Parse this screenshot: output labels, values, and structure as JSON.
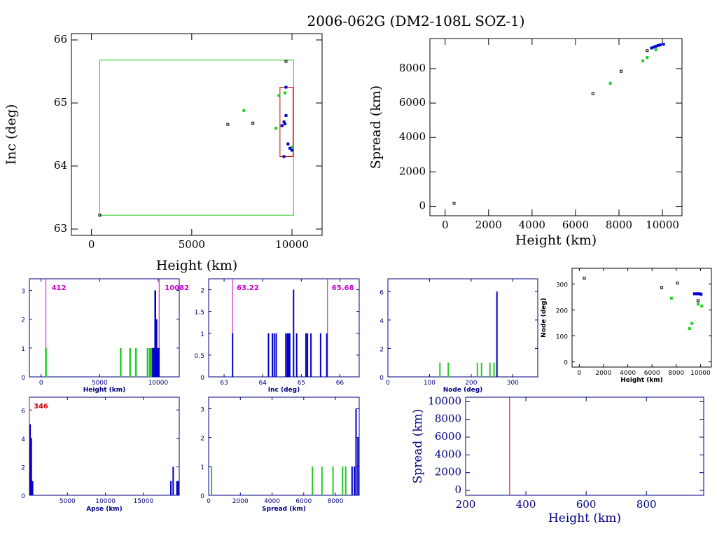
{
  "title": "2006-062G (DM2-108L SOZ-1)",
  "colors": {
    "black": "#000000",
    "green": "#22cc22",
    "blue": "#0000cc",
    "red": "#cc0000",
    "magenta": "#cc00cc",
    "navy": "#000080"
  },
  "chart_data": [
    {
      "id": "inc-height",
      "type": "scatter",
      "xlabel": "Height (km)",
      "ylabel": "Inc (deg)",
      "xlim": [
        -1000,
        11500
      ],
      "ylim": [
        62.9,
        66.1
      ],
      "xticks": [
        0,
        5000,
        10000
      ],
      "yticks": [
        63,
        64,
        65,
        66
      ],
      "boxes": [
        {
          "x": [
            412,
            10082
          ],
          "y": [
            63.22,
            65.68
          ],
          "color": "green"
        },
        {
          "x": [
            9400,
            10050
          ],
          "y": [
            64.15,
            65.25
          ],
          "color": "red"
        }
      ],
      "points": [
        {
          "x": 6800,
          "y": 64.66,
          "c": "black"
        },
        {
          "x": 8050,
          "y": 64.68,
          "c": "black"
        },
        {
          "x": 9700,
          "y": 65.66,
          "c": "black"
        },
        {
          "x": 412,
          "y": 63.22,
          "c": "black"
        },
        {
          "x": 7600,
          "y": 64.88,
          "c": "green"
        },
        {
          "x": 9200,
          "y": 64.6,
          "c": "green"
        },
        {
          "x": 9350,
          "y": 65.12,
          "c": "green"
        },
        {
          "x": 9650,
          "y": 65.16,
          "c": "green"
        },
        {
          "x": 10000,
          "y": 64.3,
          "c": "green"
        },
        {
          "x": 9500,
          "y": 64.64,
          "c": "blue"
        },
        {
          "x": 9600,
          "y": 64.7,
          "c": "blue"
        },
        {
          "x": 9650,
          "y": 64.67,
          "c": "blue"
        },
        {
          "x": 9700,
          "y": 64.8,
          "c": "blue"
        },
        {
          "x": 9800,
          "y": 64.35,
          "c": "blue"
        },
        {
          "x": 9900,
          "y": 64.28,
          "c": "blue"
        },
        {
          "x": 10000,
          "y": 64.25,
          "c": "blue"
        },
        {
          "x": 9600,
          "y": 64.15,
          "c": "blue"
        },
        {
          "x": 9700,
          "y": 65.25,
          "c": "blue"
        }
      ]
    },
    {
      "id": "spread-height",
      "type": "scatter",
      "xlabel": "Height (km)",
      "ylabel": "Spread (km)",
      "xlim": [
        -700,
        10900
      ],
      "ylim": [
        -550,
        9750
      ],
      "xticks": [
        0,
        2000,
        4000,
        6000,
        8000,
        10000
      ],
      "yticks": [
        0,
        2000,
        4000,
        6000,
        8000
      ],
      "points": [
        {
          "x": 412,
          "y": 180,
          "c": "black"
        },
        {
          "x": 6800,
          "y": 6550,
          "c": "black"
        },
        {
          "x": 8100,
          "y": 7850,
          "c": "black"
        },
        {
          "x": 9300,
          "y": 9050,
          "c": "black"
        },
        {
          "x": 7600,
          "y": 7150,
          "c": "green"
        },
        {
          "x": 9100,
          "y": 8450,
          "c": "green"
        },
        {
          "x": 9300,
          "y": 8650,
          "c": "green"
        },
        {
          "x": 9700,
          "y": 9100,
          "c": "green"
        },
        {
          "x": 9500,
          "y": 9200,
          "c": "blue"
        },
        {
          "x": 9600,
          "y": 9250,
          "c": "blue"
        },
        {
          "x": 9700,
          "y": 9300,
          "c": "blue"
        },
        {
          "x": 9800,
          "y": 9350,
          "c": "blue"
        },
        {
          "x": 9900,
          "y": 9380,
          "c": "blue"
        },
        {
          "x": 10050,
          "y": 9420,
          "c": "blue"
        }
      ]
    },
    {
      "id": "hist-height",
      "type": "bar",
      "xlabel": "Height (km)",
      "ylabel": "",
      "xlim": [
        -1000,
        11800
      ],
      "ylim": [
        0,
        3.4
      ],
      "xticks": [
        0,
        5000,
        10000
      ],
      "yticks": [
        0,
        1,
        2,
        3
      ],
      "vlines": [
        {
          "x": 412,
          "color": "magenta",
          "label": "412",
          "anchor": "right"
        },
        {
          "x": 10082,
          "color": "magenta",
          "label": "10082",
          "anchor": "right"
        }
      ],
      "bars": [
        {
          "x": 412,
          "h": 1,
          "c": "green"
        },
        {
          "x": 6800,
          "h": 1,
          "c": "green"
        },
        {
          "x": 7600,
          "h": 1,
          "c": "green"
        },
        {
          "x": 8100,
          "h": 1,
          "c": "green"
        },
        {
          "x": 9100,
          "h": 1,
          "c": "green"
        },
        {
          "x": 9300,
          "h": 1,
          "c": "green"
        },
        {
          "x": 9450,
          "h": 1,
          "c": "green"
        },
        {
          "x": 9550,
          "h": 1,
          "c": "blue"
        },
        {
          "x": 9650,
          "h": 1,
          "c": "blue"
        },
        {
          "x": 9750,
          "h": 3,
          "c": "blue"
        },
        {
          "x": 9850,
          "h": 2,
          "c": "blue"
        },
        {
          "x": 9950,
          "h": 1,
          "c": "blue"
        },
        {
          "x": 10050,
          "h": 1,
          "c": "blue"
        }
      ]
    },
    {
      "id": "hist-inc",
      "type": "bar",
      "xlabel": "Inc (deg)",
      "ylabel": "",
      "xlim": [
        62.6,
        66.5
      ],
      "ylim": [
        0,
        2.25
      ],
      "xticks": [
        63,
        64,
        65,
        66
      ],
      "yticks": [
        0,
        0.5,
        1,
        1.5,
        2
      ],
      "vlines": [
        {
          "x": 63.22,
          "color": "magenta",
          "label": "63.22",
          "anchor": "left"
        },
        {
          "x": 65.68,
          "color": "magenta",
          "label": "65.68",
          "anchor": "left"
        }
      ],
      "bars": [
        {
          "x": 63.22,
          "h": 1,
          "c": "blue"
        },
        {
          "x": 64.15,
          "h": 1,
          "c": "blue"
        },
        {
          "x": 64.25,
          "h": 1,
          "c": "blue"
        },
        {
          "x": 64.3,
          "h": 1,
          "c": "blue"
        },
        {
          "x": 64.35,
          "h": 1,
          "c": "blue"
        },
        {
          "x": 64.6,
          "h": 1,
          "c": "blue"
        },
        {
          "x": 64.64,
          "h": 1,
          "c": "blue"
        },
        {
          "x": 64.67,
          "h": 1,
          "c": "blue"
        },
        {
          "x": 64.7,
          "h": 1,
          "c": "blue"
        },
        {
          "x": 64.8,
          "h": 2,
          "c": "blue"
        },
        {
          "x": 64.88,
          "h": 1,
          "c": "blue"
        },
        {
          "x": 65.12,
          "h": 1,
          "c": "blue"
        },
        {
          "x": 65.16,
          "h": 1,
          "c": "blue"
        },
        {
          "x": 65.25,
          "h": 1,
          "c": "blue"
        },
        {
          "x": 65.5,
          "h": 1,
          "c": "blue"
        },
        {
          "x": 65.66,
          "h": 1,
          "c": "blue"
        }
      ]
    },
    {
      "id": "hist-node",
      "type": "bar",
      "xlabel": "Node (deg)",
      "ylabel": "",
      "xlim": [
        0,
        360
      ],
      "ylim": [
        0,
        6.9
      ],
      "xticks": [
        0,
        100,
        200,
        300
      ],
      "yticks": [
        0,
        2,
        4,
        6
      ],
      "bars": [
        {
          "x": 125,
          "h": 1,
          "c": "green"
        },
        {
          "x": 145,
          "h": 1,
          "c": "green"
        },
        {
          "x": 215,
          "h": 1,
          "c": "green"
        },
        {
          "x": 225,
          "h": 1,
          "c": "green"
        },
        {
          "x": 245,
          "h": 1,
          "c": "green"
        },
        {
          "x": 255,
          "h": 1,
          "c": "green"
        },
        {
          "x": 262,
          "h": 6,
          "c": "blue"
        }
      ]
    },
    {
      "id": "node-height",
      "type": "scatter",
      "xlabel": "Height (km)",
      "ylabel": "Node (deg)",
      "xlim": [
        -600,
        10900
      ],
      "ylim": [
        -20,
        360
      ],
      "xticks": [
        0,
        2000,
        4000,
        6000,
        8000,
        10000
      ],
      "yticks": [
        0,
        100,
        200,
        300
      ],
      "points": [
        {
          "x": 412,
          "y": 322,
          "c": "black"
        },
        {
          "x": 6800,
          "y": 286,
          "c": "black"
        },
        {
          "x": 8100,
          "y": 303,
          "c": "black"
        },
        {
          "x": 9800,
          "y": 235,
          "c": "black"
        },
        {
          "x": 7600,
          "y": 245,
          "c": "green"
        },
        {
          "x": 9100,
          "y": 128,
          "c": "green"
        },
        {
          "x": 9300,
          "y": 148,
          "c": "green"
        },
        {
          "x": 9800,
          "y": 222,
          "c": "green"
        },
        {
          "x": 10100,
          "y": 215,
          "c": "green"
        },
        {
          "x": 9500,
          "y": 262,
          "c": "blue"
        },
        {
          "x": 9650,
          "y": 262,
          "c": "blue"
        },
        {
          "x": 9750,
          "y": 262,
          "c": "blue"
        },
        {
          "x": 9850,
          "y": 262,
          "c": "blue"
        },
        {
          "x": 9950,
          "y": 262,
          "c": "blue"
        },
        {
          "x": 10050,
          "y": 260,
          "c": "blue"
        }
      ]
    },
    {
      "id": "hist-apse",
      "type": "bar",
      "xlabel": "Apse (km)",
      "ylabel": "",
      "xlim": [
        0,
        19700
      ],
      "ylim": [
        0,
        6.9
      ],
      "xticks": [
        5000,
        10000,
        15000
      ],
      "yticks": [
        0,
        2,
        4,
        6
      ],
      "vlines": [
        {
          "x": 0,
          "color": "red",
          "label": "346",
          "anchor": "left"
        }
      ],
      "bars": [
        {
          "x": 100,
          "h": 5,
          "c": "blue"
        },
        {
          "x": 250,
          "h": 4,
          "c": "blue"
        },
        {
          "x": 420,
          "h": 1,
          "c": "blue"
        },
        {
          "x": 18600,
          "h": 1,
          "c": "blue"
        },
        {
          "x": 18900,
          "h": 2,
          "c": "blue"
        },
        {
          "x": 19400,
          "h": 1,
          "c": "blue"
        },
        {
          "x": 19550,
          "h": 1,
          "c": "blue"
        }
      ]
    },
    {
      "id": "hist-spread",
      "type": "bar",
      "xlabel": "Spread (km)",
      "ylabel": "",
      "xlim": [
        0,
        9500
      ],
      "ylim": [
        0,
        3.4
      ],
      "xticks": [
        0,
        2000,
        4000,
        6000,
        8000
      ],
      "yticks": [
        0,
        1,
        2,
        3
      ],
      "bars": [
        {
          "x": 180,
          "h": 1,
          "c": "green"
        },
        {
          "x": 6550,
          "h": 1,
          "c": "green"
        },
        {
          "x": 7150,
          "h": 1,
          "c": "green"
        },
        {
          "x": 7850,
          "h": 1,
          "c": "green"
        },
        {
          "x": 8450,
          "h": 1,
          "c": "green"
        },
        {
          "x": 8650,
          "h": 1,
          "c": "green"
        },
        {
          "x": 9050,
          "h": 1,
          "c": "blue"
        },
        {
          "x": 9200,
          "h": 1,
          "c": "blue"
        },
        {
          "x": 9300,
          "h": 3,
          "c": "blue"
        },
        {
          "x": 9420,
          "h": 2,
          "c": "blue"
        }
      ]
    },
    {
      "id": "spread-height-low",
      "type": "line",
      "xlabel": "Height (km)",
      "ylabel": "Spread (km)",
      "xlim": [
        200,
        990
      ],
      "ylim": [
        -550,
        10500
      ],
      "xticks": [
        200,
        400,
        600,
        800
      ],
      "yticks": [
        0,
        2000,
        4000,
        6000,
        8000,
        10000
      ],
      "vlines": [
        {
          "x": 346,
          "color": "red"
        }
      ]
    }
  ]
}
